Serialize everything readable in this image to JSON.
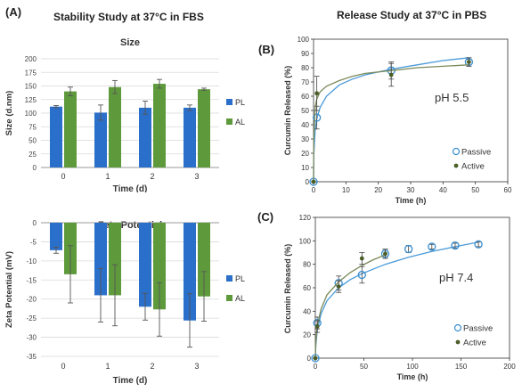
{
  "panel_a_label": "(A)",
  "panel_b_label": "(B)",
  "panel_c_label": "(C)",
  "left_heading": "Stability Study at 37°C in FBS",
  "right_heading": "Release Study at 37°C in PBS",
  "colors": {
    "PL": "#2a6fc9",
    "AL": "#5e9a3c",
    "passive": "#3a8fd0",
    "active": "#4b5e2a",
    "fit_passive": "#4a9ad8",
    "fit_active": "#7a8a5a"
  },
  "chart_data": [
    {
      "id": "size",
      "type": "bar",
      "title": "Size",
      "xlabel": "Time (d)",
      "ylabel": "Size (d.nm)",
      "categories": [
        "0",
        "1",
        "2",
        "3"
      ],
      "ylim": [
        0,
        200
      ],
      "yticks": [
        "0",
        "25",
        "50",
        "75",
        "100",
        "125",
        "150",
        "175",
        "200"
      ],
      "legend_position": "right",
      "series": [
        {
          "name": "PL",
          "values": [
            112,
            101,
            110,
            110
          ],
          "errors": [
            2,
            14,
            12,
            5
          ]
        },
        {
          "name": "AL",
          "values": [
            140,
            148,
            154,
            144
          ],
          "errors": [
            8,
            12,
            8,
            2
          ]
        }
      ]
    },
    {
      "id": "zeta",
      "type": "bar",
      "title": "Zeta Potential",
      "xlabel": "Time (d)",
      "ylabel": "Zeta Potential (mV)",
      "categories": [
        "0",
        "1",
        "2",
        "3"
      ],
      "ylim": [
        -35,
        0
      ],
      "yticks": [
        "0",
        "-5",
        "-10",
        "-15",
        "-20",
        "-25",
        "-30",
        "-35"
      ],
      "legend_position": "right",
      "series": [
        {
          "name": "PL",
          "values": [
            -7.2,
            -19,
            -22,
            -25.6
          ],
          "errors": [
            0.8,
            7,
            3.5,
            7
          ]
        },
        {
          "name": "AL",
          "values": [
            -13.5,
            -19,
            -22.7,
            -19.3
          ],
          "errors": [
            7.5,
            8,
            7,
            6.5
          ]
        }
      ]
    },
    {
      "id": "ph55",
      "type": "scatter",
      "annotation": "pH 5.5",
      "xlabel": "Time (h)",
      "ylabel": "Curcumin Released (%)",
      "xlim": [
        0,
        60
      ],
      "ylim": [
        0,
        100
      ],
      "xticks": [
        "0",
        "10",
        "20",
        "30",
        "40",
        "50",
        "60"
      ],
      "yticks": [
        "0",
        "10",
        "20",
        "30",
        "40",
        "50",
        "60",
        "70",
        "80",
        "90",
        "100"
      ],
      "legend_position": "bottom-right",
      "series": [
        {
          "name": "Passive",
          "x": [
            0,
            1,
            24,
            48
          ],
          "y": [
            0,
            45,
            78,
            84
          ],
          "errors": [
            0,
            8,
            6,
            2
          ],
          "fit": [
            [
              0.05,
              18
            ],
            [
              0.5,
              36
            ],
            [
              1,
              44
            ],
            [
              2,
              52
            ],
            [
              4,
              60
            ],
            [
              8,
              68
            ],
            [
              12,
              72
            ],
            [
              16,
              75
            ],
            [
              24,
              79
            ],
            [
              32,
              82
            ],
            [
              40,
              85
            ],
            [
              48,
              87
            ]
          ]
        },
        {
          "name": "Active",
          "x": [
            0,
            1,
            24,
            48
          ],
          "y": [
            0,
            62,
            75,
            84
          ],
          "errors": [
            0,
            12,
            8,
            3
          ],
          "fit": [
            [
              0.05,
              30
            ],
            [
              0.5,
              52
            ],
            [
              1,
              58
            ],
            [
              2,
              63
            ],
            [
              4,
              67
            ],
            [
              8,
              71
            ],
            [
              12,
              74
            ],
            [
              16,
              76
            ],
            [
              24,
              78
            ],
            [
              32,
              80
            ],
            [
              40,
              81
            ],
            [
              48,
              82
            ]
          ]
        }
      ]
    },
    {
      "id": "ph74",
      "type": "scatter",
      "annotation": "pH 7.4",
      "xlabel": "Time (h)",
      "ylabel": "Curcumin Released (%)",
      "xlim": [
        0,
        200
      ],
      "ylim": [
        0,
        120
      ],
      "xticks": [
        "0",
        "50",
        "100",
        "150",
        "200"
      ],
      "yticks": [
        "0",
        "20",
        "40",
        "60",
        "80",
        "100",
        "120"
      ],
      "legend_position": "bottom-right",
      "series": [
        {
          "name": "Passive",
          "x": [
            0,
            2,
            24,
            48,
            72,
            96,
            120,
            144,
            168
          ],
          "y": [
            0,
            30,
            64,
            71,
            89,
            93,
            95,
            96,
            97
          ],
          "errors": [
            0,
            5,
            6,
            7,
            3,
            3,
            2,
            2,
            2
          ],
          "fit": [
            [
              0.5,
              10
            ],
            [
              2,
              24
            ],
            [
              6,
              38
            ],
            [
              12,
              49
            ],
            [
              24,
              60
            ],
            [
              36,
              67
            ],
            [
              48,
              72
            ],
            [
              72,
              80
            ],
            [
              96,
              86
            ],
            [
              120,
              91
            ],
            [
              144,
              95
            ],
            [
              168,
              99
            ]
          ]
        },
        {
          "name": "Active",
          "x": [
            0,
            2,
            24,
            48,
            72
          ],
          "y": [
            0,
            27,
            61,
            85,
            89
          ],
          "errors": [
            0,
            5,
            5,
            5,
            4
          ],
          "fit": [
            [
              0.5,
              12
            ],
            [
              2,
              28
            ],
            [
              6,
              42
            ],
            [
              12,
              54
            ],
            [
              24,
              65
            ],
            [
              36,
              73
            ],
            [
              48,
              79
            ],
            [
              60,
              84
            ],
            [
              72,
              88
            ]
          ]
        }
      ]
    }
  ]
}
